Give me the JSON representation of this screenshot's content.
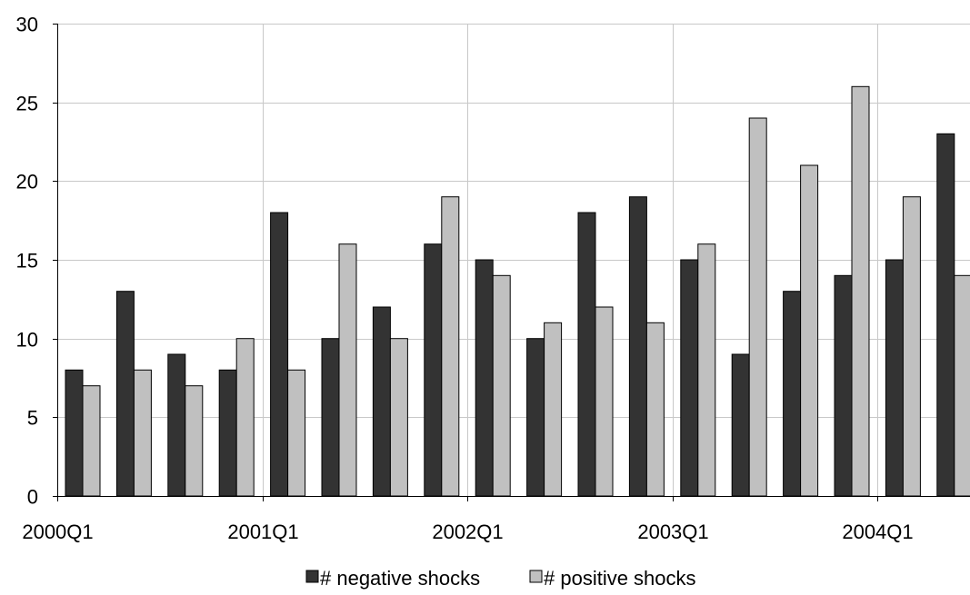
{
  "chart_data": {
    "type": "bar",
    "title": "",
    "xlabel": "",
    "ylabel": "",
    "ylim": [
      0,
      30
    ],
    "y_ticks": [
      0,
      5,
      10,
      15,
      20,
      25,
      30
    ],
    "grid": true,
    "legend_position": "bottom",
    "categories": [
      "2000Q1",
      "2000Q2",
      "2000Q3",
      "2000Q4",
      "2001Q1",
      "2001Q2",
      "2001Q3",
      "2001Q4",
      "2002Q1",
      "2002Q2",
      "2002Q3",
      "2002Q4",
      "2003Q1",
      "2003Q2",
      "2003Q3",
      "2003Q4",
      "2004Q1",
      "2004Q2"
    ],
    "x_tick_labels": [
      "2000Q1",
      "2001Q1",
      "2002Q1",
      "2003Q1",
      "2004Q1"
    ],
    "series": [
      {
        "name": "# negative shocks",
        "color": "#333333",
        "values": [
          8,
          13,
          9,
          8,
          18,
          10,
          12,
          16,
          15,
          10,
          18,
          19,
          15,
          9,
          13,
          14,
          15,
          23
        ]
      },
      {
        "name": "# positive shocks",
        "color": "#c0c0c0",
        "values": [
          7,
          8,
          7,
          10,
          8,
          16,
          10,
          19,
          14,
          11,
          12,
          11,
          16,
          24,
          21,
          26,
          19,
          14
        ]
      }
    ]
  }
}
